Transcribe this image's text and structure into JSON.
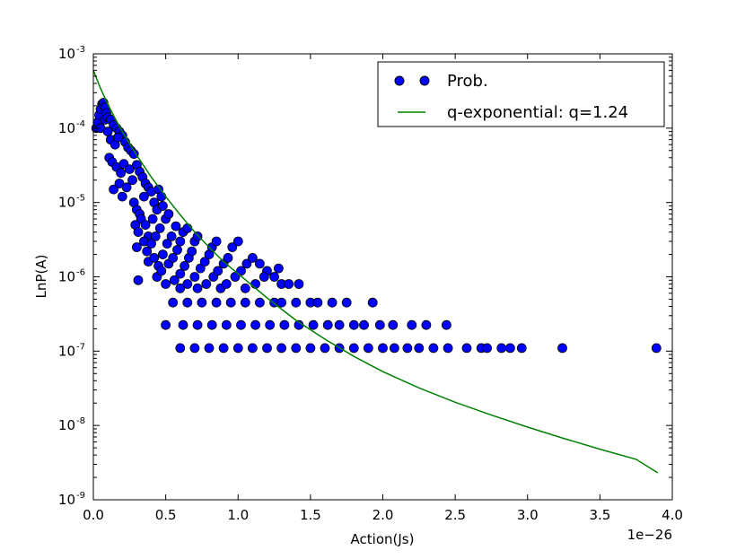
{
  "chart_data": {
    "type": "scatter",
    "xlabel": "Action(Js)",
    "ylabel": "LnP(A)",
    "x_offset_label": "1e−26",
    "x_ticks": [
      "0.0",
      "0.5",
      "1.0",
      "1.5",
      "2.0",
      "2.5",
      "3.0",
      "3.5",
      "4.0"
    ],
    "y_ticks": [
      {
        "base": "10",
        "exp": "-9"
      },
      {
        "base": "10",
        "exp": "-8"
      },
      {
        "base": "10",
        "exp": "-7"
      },
      {
        "base": "10",
        "exp": "-6"
      },
      {
        "base": "10",
        "exp": "-5"
      },
      {
        "base": "10",
        "exp": "-4"
      },
      {
        "base": "10",
        "exp": "-3"
      }
    ],
    "xlim": [
      0,
      4.0
    ],
    "ylim_log10": [
      -9,
      -3
    ],
    "yscale": "log",
    "grid": false,
    "legend_position": "top-right",
    "colors": {
      "scatter_fill": "#0000ff",
      "scatter_edge": "#000000",
      "line": "#008000"
    },
    "series": [
      {
        "name": "Prob.",
        "kind": "scatter",
        "points": [
          [
            0.02,
            0.0001
          ],
          [
            0.03,
            0.00012
          ],
          [
            0.04,
            0.00015
          ],
          [
            0.05,
            0.00018
          ],
          [
            0.06,
            0.00021
          ],
          [
            0.07,
            0.00022
          ],
          [
            0.08,
            0.00019
          ],
          [
            0.09,
            0.00016
          ],
          [
            0.05,
            0.0001
          ],
          [
            0.08,
            0.00013
          ],
          [
            0.1,
            0.00014
          ],
          [
            0.12,
            0.00013
          ],
          [
            0.14,
            0.00011
          ],
          [
            0.16,
            0.0001
          ],
          [
            0.18,
            9e-05
          ],
          [
            0.2,
            8e-05
          ],
          [
            0.1,
            9e-05
          ],
          [
            0.12,
            7e-05
          ],
          [
            0.15,
            6e-05
          ],
          [
            0.17,
            7.5e-05
          ],
          [
            0.22,
            6.5e-05
          ],
          [
            0.24,
            5.5e-05
          ],
          [
            0.26,
            5e-05
          ],
          [
            0.28,
            4.5e-05
          ],
          [
            0.11,
            4e-05
          ],
          [
            0.13,
            3.5e-05
          ],
          [
            0.16,
            3e-05
          ],
          [
            0.19,
            2.5e-05
          ],
          [
            0.21,
            3.3e-05
          ],
          [
            0.25,
            2.8e-05
          ],
          [
            0.3,
            3.2e-05
          ],
          [
            0.32,
            2.6e-05
          ],
          [
            0.14,
            1.5e-05
          ],
          [
            0.18,
            1.8e-05
          ],
          [
            0.2,
            1.2e-05
          ],
          [
            0.23,
            1.6e-05
          ],
          [
            0.27,
            2e-05
          ],
          [
            0.34,
            2.2e-05
          ],
          [
            0.36,
            1.8e-05
          ],
          [
            0.38,
            1.6e-05
          ],
          [
            0.28,
            1e-05
          ],
          [
            0.3,
            8e-06
          ],
          [
            0.32,
            7e-06
          ],
          [
            0.35,
            1.2e-05
          ],
          [
            0.4,
            1.4e-05
          ],
          [
            0.42,
            1e-05
          ],
          [
            0.45,
            1.5e-05
          ],
          [
            0.47,
            1.2e-05
          ],
          [
            0.29,
            5e-06
          ],
          [
            0.31,
            4e-06
          ],
          [
            0.33,
            6e-06
          ],
          [
            0.36,
            5e-06
          ],
          [
            0.38,
            3.5e-06
          ],
          [
            0.41,
            6e-06
          ],
          [
            0.44,
            8e-06
          ],
          [
            0.48,
            9e-06
          ],
          [
            0.3,
            2.5e-06
          ],
          [
            0.35,
            3e-06
          ],
          [
            0.37,
            2.2e-06
          ],
          [
            0.4,
            2.8e-06
          ],
          [
            0.43,
            3.5e-06
          ],
          [
            0.46,
            4.5e-06
          ],
          [
            0.5,
            6e-06
          ],
          [
            0.52,
            7e-06
          ],
          [
            0.31,
            9e-07
          ],
          [
            0.38,
            1.6e-06
          ],
          [
            0.42,
            1.8e-06
          ],
          [
            0.45,
            1.4e-06
          ],
          [
            0.48,
            2e-06
          ],
          [
            0.51,
            2.8e-06
          ],
          [
            0.54,
            3.5e-06
          ],
          [
            0.57,
            4.8e-06
          ],
          [
            0.44,
            1e-06
          ],
          [
            0.47,
            1.2e-06
          ],
          [
            0.52,
            1.5e-06
          ],
          [
            0.55,
            1.8e-06
          ],
          [
            0.58,
            2.3e-06
          ],
          [
            0.6,
            3e-06
          ],
          [
            0.62,
            4e-06
          ],
          [
            0.65,
            4.5e-06
          ],
          [
            0.5,
            8e-07
          ],
          [
            0.56,
            9e-07
          ],
          [
            0.6,
            1.1e-06
          ],
          [
            0.63,
            1.4e-06
          ],
          [
            0.66,
            1.8e-06
          ],
          [
            0.68,
            2.2e-06
          ],
          [
            0.7,
            3e-06
          ],
          [
            0.72,
            3.5e-06
          ],
          [
            0.6,
            7e-07
          ],
          [
            0.65,
            8e-07
          ],
          [
            0.7,
            1e-06
          ],
          [
            0.74,
            1.3e-06
          ],
          [
            0.77,
            1.6e-06
          ],
          [
            0.8,
            2e-06
          ],
          [
            0.82,
            2.5e-06
          ],
          [
            0.85,
            3e-06
          ],
          [
            0.72,
            7e-07
          ],
          [
            0.78,
            8e-07
          ],
          [
            0.83,
            1e-06
          ],
          [
            0.86,
            1.2e-06
          ],
          [
            0.9,
            1.5e-06
          ],
          [
            0.93,
            1.8e-06
          ],
          [
            0.96,
            2.5e-06
          ],
          [
            1.0,
            3e-06
          ],
          [
            0.88,
            7e-07
          ],
          [
            0.92,
            8e-07
          ],
          [
            0.98,
            1e-06
          ],
          [
            1.02,
            1.2e-06
          ],
          [
            1.06,
            1.5e-06
          ],
          [
            1.1,
            1.8e-06
          ],
          [
            1.15,
            1.5e-06
          ],
          [
            1.2,
            1.2e-06
          ],
          [
            1.05,
            7e-07
          ],
          [
            1.12,
            8e-07
          ],
          [
            1.18,
            1e-06
          ],
          [
            1.25,
            1e-06
          ],
          [
            1.3,
            8e-07
          ],
          [
            1.35,
            8e-07
          ],
          [
            1.42,
            8e-07
          ],
          [
            1.28,
            1.3e-06
          ],
          [
            0.55,
            4.5e-07
          ],
          [
            0.65,
            4.5e-07
          ],
          [
            0.75,
            4.5e-07
          ],
          [
            0.85,
            4.5e-07
          ],
          [
            0.95,
            4.5e-07
          ],
          [
            1.05,
            4.5e-07
          ],
          [
            1.15,
            4.5e-07
          ],
          [
            1.25,
            4.5e-07
          ],
          [
            1.3,
            4.5e-07
          ],
          [
            1.4,
            4.5e-07
          ],
          [
            1.5,
            4.5e-07
          ],
          [
            1.55,
            4.5e-07
          ],
          [
            1.65,
            4.5e-07
          ],
          [
            1.75,
            4.5e-07
          ],
          [
            1.93,
            4.5e-07
          ],
          [
            0.5,
            2.25e-07
          ],
          [
            0.62,
            2.25e-07
          ],
          [
            0.72,
            2.25e-07
          ],
          [
            0.82,
            2.25e-07
          ],
          [
            0.92,
            2.25e-07
          ],
          [
            1.02,
            2.25e-07
          ],
          [
            1.12,
            2.25e-07
          ],
          [
            1.22,
            2.25e-07
          ],
          [
            1.32,
            2.25e-07
          ],
          [
            1.42,
            2.25e-07
          ],
          [
            1.52,
            2.25e-07
          ],
          [
            1.62,
            2.25e-07
          ],
          [
            1.7,
            2.25e-07
          ],
          [
            1.8,
            2.25e-07
          ],
          [
            1.87,
            2.25e-07
          ],
          [
            1.98,
            2.25e-07
          ],
          [
            2.07,
            2.25e-07
          ],
          [
            2.2,
            2.25e-07
          ],
          [
            2.3,
            2.25e-07
          ],
          [
            2.44,
            2.25e-07
          ],
          [
            0.6,
            1.1e-07
          ],
          [
            0.7,
            1.1e-07
          ],
          [
            0.8,
            1.1e-07
          ],
          [
            0.9,
            1.1e-07
          ],
          [
            1.0,
            1.1e-07
          ],
          [
            1.1,
            1.1e-07
          ],
          [
            1.2,
            1.1e-07
          ],
          [
            1.3,
            1.1e-07
          ],
          [
            1.4,
            1.1e-07
          ],
          [
            1.5,
            1.1e-07
          ],
          [
            1.6,
            1.1e-07
          ],
          [
            1.7,
            1.1e-07
          ],
          [
            1.8,
            1.1e-07
          ],
          [
            1.9,
            1.1e-07
          ],
          [
            2.0,
            1.1e-07
          ],
          [
            2.08,
            1.1e-07
          ],
          [
            2.17,
            1.1e-07
          ],
          [
            2.25,
            1.1e-07
          ],
          [
            2.35,
            1.1e-07
          ],
          [
            2.45,
            1.1e-07
          ],
          [
            2.58,
            1.1e-07
          ],
          [
            2.68,
            1.1e-07
          ],
          [
            2.72,
            1.1e-07
          ],
          [
            2.82,
            1.1e-07
          ],
          [
            2.88,
            1.1e-07
          ],
          [
            2.96,
            1.1e-07
          ],
          [
            3.24,
            1.1e-07
          ],
          [
            3.89,
            1.1e-07
          ]
        ]
      },
      {
        "name": "q-exponential: q=1.24",
        "kind": "line",
        "points": [
          [
            0.0,
            0.0006
          ],
          [
            0.05,
            0.00034
          ],
          [
            0.1,
            0.00021
          ],
          [
            0.15,
            0.000135
          ],
          [
            0.2,
            9e-05
          ],
          [
            0.3,
            4.3e-05
          ],
          [
            0.4,
            2.2e-05
          ],
          [
            0.5,
            1.2e-05
          ],
          [
            0.6,
            6.8e-06
          ],
          [
            0.7,
            4e-06
          ],
          [
            0.8,
            2.5e-06
          ],
          [
            0.9,
            1.6e-06
          ],
          [
            1.0,
            1.1e-06
          ],
          [
            1.2,
            5.2e-07
          ],
          [
            1.4,
            2.6e-07
          ],
          [
            1.6,
            1.45e-07
          ],
          [
            1.8,
            8.5e-08
          ],
          [
            2.0,
            5.3e-08
          ],
          [
            2.25,
            3.2e-08
          ],
          [
            2.5,
            2.05e-08
          ],
          [
            2.75,
            1.38e-08
          ],
          [
            3.0,
            9.5e-09
          ],
          [
            3.25,
            6.7e-09
          ],
          [
            3.5,
            4.8e-09
          ],
          [
            3.75,
            3.5e-09
          ],
          [
            3.9,
            2.3e-09
          ]
        ]
      }
    ]
  }
}
